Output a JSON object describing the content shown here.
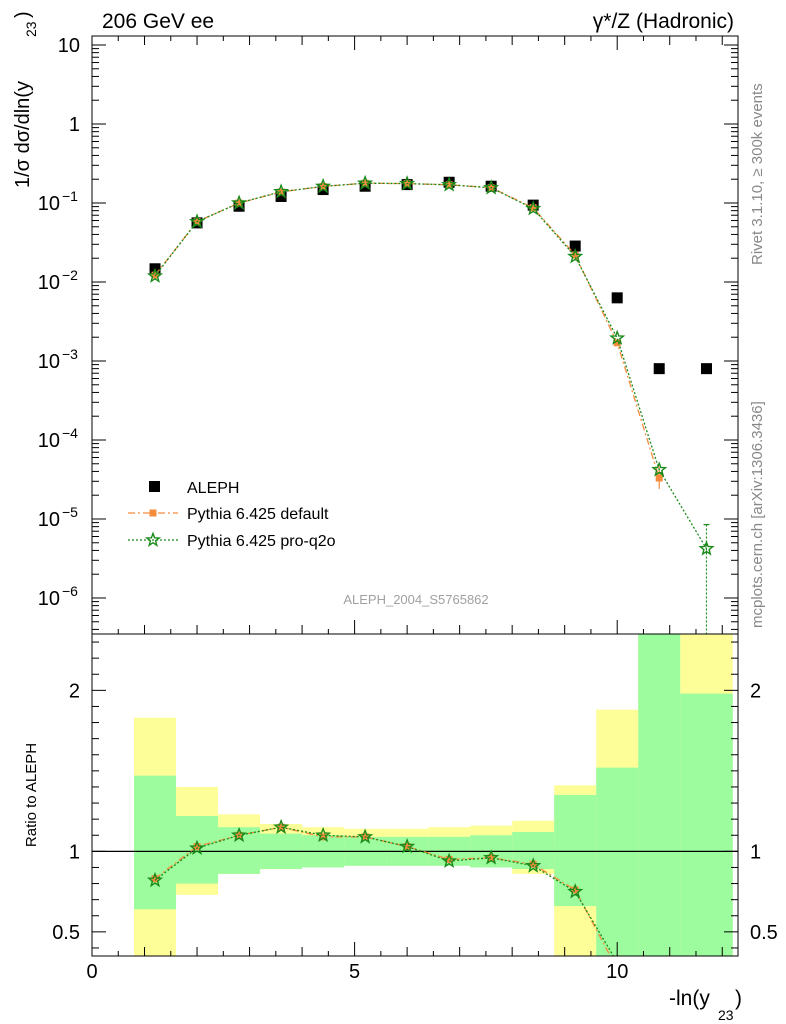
{
  "header": {
    "left": "206 GeV ee",
    "right": "γ*/Z (Hadronic)"
  },
  "side_notes": {
    "rivet": "Rivet 3.1.10, ≥ 300k events",
    "mcplots": "mcplots.cern.ch [arXiv:1306.3436]"
  },
  "analysis_id": "ALEPH_2004_S5765862",
  "colors": {
    "data": "#000000",
    "pythia_default": "#f58c3c",
    "pythia_proq2o": "#1a8a1a",
    "band_inner": "#9dfc9d",
    "band_outer": "#fefe98"
  },
  "legend": [
    {
      "label": "ALEPH",
      "key": "data"
    },
    {
      "label": "Pythia 6.425 default",
      "key": "pythia_default"
    },
    {
      "label": "Pythia 6.425 pro-q2o",
      "key": "pythia_proq2o"
    }
  ],
  "chart_data": [
    {
      "type": "scatter",
      "panel": "main",
      "ylabel": "1/σ dσ/dln(y23)",
      "ylog": true,
      "xlim": [
        0,
        12.3
      ],
      "ylim": [
        3.5e-07,
        13
      ],
      "y_ticks": [
        "10",
        "1",
        "10−1",
        "10−2",
        "10−3",
        "10−4",
        "10−5",
        "10−6"
      ],
      "x_bins": [
        [
          0.8,
          1.6
        ],
        [
          1.6,
          2.4
        ],
        [
          2.4,
          3.2
        ],
        [
          3.2,
          4.0
        ],
        [
          4.0,
          4.8
        ],
        [
          4.8,
          5.6
        ],
        [
          5.6,
          6.4
        ],
        [
          6.4,
          7.2
        ],
        [
          7.2,
          8.0
        ],
        [
          8.0,
          8.8
        ],
        [
          8.8,
          9.6
        ],
        [
          9.6,
          10.4
        ],
        [
          10.4,
          11.2
        ],
        [
          11.2,
          12.2
        ]
      ],
      "series": [
        {
          "name": "ALEPH",
          "x": [
            1.2,
            2.0,
            2.8,
            3.6,
            4.4,
            5.2,
            6.0,
            6.8,
            7.6,
            8.4,
            9.2,
            10.0,
            10.8,
            11.7
          ],
          "y": [
            0.0147,
            0.056,
            0.091,
            0.121,
            0.148,
            0.163,
            0.171,
            0.183,
            0.163,
            0.094,
            0.0285,
            0.0063,
            0.0008,
            0.0008
          ]
        },
        {
          "name": "Pythia 6.425 default",
          "x": [
            1.2,
            2.0,
            2.8,
            3.6,
            4.4,
            5.2,
            6.0,
            6.8,
            7.6,
            8.4,
            9.2,
            10.0,
            10.8
          ],
          "y": [
            0.0122,
            0.058,
            0.1,
            0.138,
            0.162,
            0.178,
            0.176,
            0.17,
            0.156,
            0.087,
            0.0219,
            0.0017,
            3.3e-05
          ]
        },
        {
          "name": "Pythia 6.425 pro-q2o",
          "x": [
            1.2,
            2.0,
            2.8,
            3.6,
            4.4,
            5.2,
            6.0,
            6.8,
            7.6,
            8.4,
            9.2,
            10.0,
            10.8,
            11.7
          ],
          "y": [
            0.0119,
            0.058,
            0.1,
            0.139,
            0.162,
            0.178,
            0.176,
            0.17,
            0.156,
            0.085,
            0.021,
            0.00195,
            4.2e-05,
            4.2e-06
          ]
        }
      ]
    },
    {
      "type": "scatter",
      "panel": "ratio",
      "xlabel": "-ln(y23)",
      "ylabel": "Ratio to ALEPH",
      "xlim": [
        0,
        12.3
      ],
      "ylim": [
        0.35,
        2.35
      ],
      "x_ticks": [
        "0",
        "5",
        "10"
      ],
      "y_ticks": [
        "0.5",
        "1",
        "2"
      ],
      "bands": {
        "inner_lo": [
          0.64,
          0.8,
          0.86,
          0.89,
          0.9,
          0.91,
          0.91,
          0.91,
          0.9,
          0.89,
          0.66,
          0.35,
          0.35,
          0.35
        ],
        "inner_hi": [
          1.47,
          1.22,
          1.15,
          1.11,
          1.1,
          1.09,
          1.09,
          1.09,
          1.1,
          1.12,
          1.35,
          1.52,
          2.35,
          1.98
        ],
        "outer_lo": [
          0.35,
          0.73,
          0.86,
          0.89,
          0.91,
          0.93,
          0.93,
          0.93,
          0.92,
          0.86,
          0.35,
          0.35,
          0.35,
          0.35
        ],
        "outer_hi": [
          1.83,
          1.4,
          1.23,
          1.17,
          1.15,
          1.14,
          1.14,
          1.15,
          1.16,
          1.19,
          1.41,
          1.88,
          2.35,
          2.35
        ]
      },
      "series": [
        {
          "name": "Pythia 6.425 default",
          "x": [
            1.2,
            2.0,
            2.8,
            3.6,
            4.4,
            5.2,
            6.0,
            6.8,
            7.6,
            8.4,
            9.2,
            10.0
          ],
          "y": [
            0.83,
            1.03,
            1.1,
            1.15,
            1.09,
            1.09,
            1.03,
            0.95,
            0.96,
            0.92,
            0.76,
            0.27
          ]
        },
        {
          "name": "Pythia 6.425 pro-q2o",
          "x": [
            1.2,
            2.0,
            2.8,
            3.6,
            4.4,
            5.2,
            6.0,
            6.8,
            7.6,
            8.4,
            9.2,
            10.0
          ],
          "y": [
            0.82,
            1.02,
            1.1,
            1.15,
            1.1,
            1.09,
            1.03,
            0.94,
            0.96,
            0.91,
            0.75,
            0.31
          ]
        }
      ]
    }
  ]
}
